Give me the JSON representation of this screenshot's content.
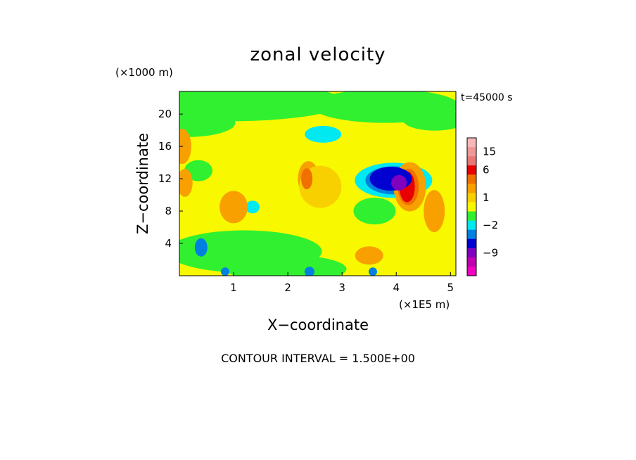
{
  "chart_data": {
    "type": "heatmap",
    "title": "zonal velocity",
    "xlabel": "X−coordinate",
    "ylabel": "Z−coordinate",
    "x_units": "(×1E5 m)",
    "y_units": "(×1000 m)",
    "time_label": "t=45000 s",
    "footer": "CONTOUR INTERVAL = 1.500E+00",
    "xlim": [
      0,
      5.1
    ],
    "ylim": [
      0,
      22.8
    ],
    "x_ticks": [
      {
        "value": 1,
        "label": "1"
      },
      {
        "value": 2,
        "label": "2"
      },
      {
        "value": 3,
        "label": "3"
      },
      {
        "value": 4,
        "label": "4"
      },
      {
        "value": 5,
        "label": "5"
      }
    ],
    "y_ticks": [
      {
        "value": 4,
        "label": "4"
      },
      {
        "value": 8,
        "label": "8"
      },
      {
        "value": 12,
        "label": "12"
      },
      {
        "value": 16,
        "label": "16"
      },
      {
        "value": 20,
        "label": "20"
      }
    ],
    "contour_interval": 1.5,
    "colorbar": {
      "levels": [
        {
          "value": 19.5,
          "color": "#f8b8b8"
        },
        {
          "value": 15,
          "color": "#f09898"
        },
        {
          "value": 10.5,
          "color": "#e87878"
        },
        {
          "value": 7.5,
          "color": "#e80000"
        },
        {
          "value": 4.5,
          "color": "#f07000"
        },
        {
          "value": 2.5,
          "color": "#f8a000"
        },
        {
          "value": 1.5,
          "color": "#f8d000"
        },
        {
          "value": 0.5,
          "color": "#f8f800"
        },
        {
          "value": -0.5,
          "color": "#30f030"
        },
        {
          "value": -1.5,
          "color": "#00e8f0"
        },
        {
          "value": -2.5,
          "color": "#0080e0"
        },
        {
          "value": -4.5,
          "color": "#0000d0"
        },
        {
          "value": -7.5,
          "color": "#8000c0"
        },
        {
          "value": -10.5,
          "color": "#c000b0"
        },
        {
          "value": -15,
          "color": "#f000c0"
        }
      ],
      "labels": [
        {
          "value": 15,
          "label": "15"
        },
        {
          "value": 6,
          "label": "6"
        },
        {
          "value": 1,
          "label": "1"
        },
        {
          "value": -2,
          "label": "−2"
        },
        {
          "value": -9,
          "label": "−9"
        }
      ]
    },
    "field_features": [
      {
        "name": "background",
        "x": 2.5,
        "z": 11,
        "value": 0.5
      },
      {
        "name": "upper-green-band",
        "x": 0.9,
        "z": 21.5,
        "value": -0.5
      },
      {
        "name": "upper-green-band-east",
        "x": 3.8,
        "z": 21,
        "value": -0.5
      },
      {
        "name": "lower-green-band",
        "x": 1.2,
        "z": 3,
        "value": -0.5
      },
      {
        "name": "west-orange-cell",
        "x": 0.05,
        "z": 16,
        "value": 2.5
      },
      {
        "name": "west-orange-cell-low",
        "x": 0.1,
        "z": 11.5,
        "value": 2.5
      },
      {
        "name": "mid-orange-cell",
        "x": 1.0,
        "z": 8.5,
        "value": 2.5
      },
      {
        "name": "centre-orange-cell",
        "x": 2.6,
        "z": 11,
        "value": 1.5
      },
      {
        "name": "east-red-core",
        "x": 4.2,
        "z": 11,
        "value": 7.5
      },
      {
        "name": "centre-red-core",
        "x": 2.35,
        "z": 12,
        "value": 4.5
      },
      {
        "name": "east-blue-core",
        "x": 3.9,
        "z": 12,
        "value": -4.5
      },
      {
        "name": "east-navy-core",
        "x": 4.05,
        "z": 11.5,
        "value": -7.5
      },
      {
        "name": "cyan-patch",
        "x": 2.65,
        "z": 17.5,
        "value": -1.5
      },
      {
        "name": "west-blue-cell",
        "x": 0.4,
        "z": 3.5,
        "value": -2.5
      },
      {
        "name": "bottom-blue-cells",
        "x": 2.4,
        "z": 0.5,
        "value": -2.5
      },
      {
        "name": "south-orange-cell",
        "x": 3.5,
        "z": 2.5,
        "value": 2.5
      },
      {
        "name": "far-east-orange-cell",
        "x": 4.7,
        "z": 8,
        "value": 2.5
      }
    ]
  }
}
